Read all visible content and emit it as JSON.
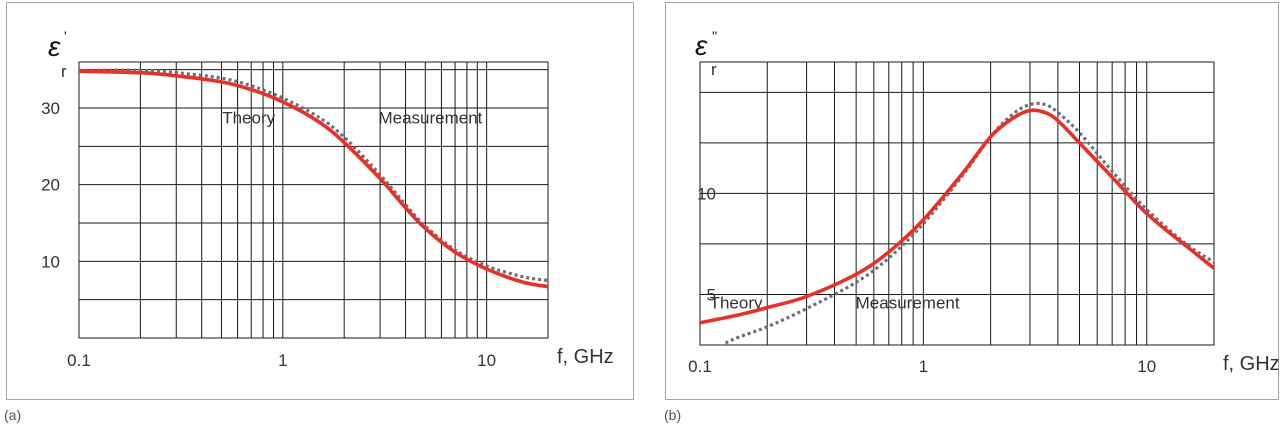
{
  "colors": {
    "theory": "#e8302a",
    "measurement": "#6e6e78",
    "grid": "#1a1a1a",
    "frame": "#a8a8a8",
    "text": "#333333"
  },
  "chart_data": [
    {
      "type": "line",
      "panel_label": "(a)",
      "ylabel_symbol": "ε",
      "ylabel_sup": "'",
      "ylabel_sub": "r",
      "xlabel": "f, GHz",
      "x_scale": "log",
      "xlim": [
        0.1,
        20
      ],
      "ylim": [
        0,
        36
      ],
      "x_ticks": [
        {
          "value": 0.1,
          "label": "0.1"
        },
        {
          "value": 1,
          "label": "1"
        },
        {
          "value": 10,
          "label": "10"
        }
      ],
      "y_ticks": [
        {
          "value": 10,
          "label": "10"
        },
        {
          "value": 20,
          "label": "20"
        },
        {
          "value": 30,
          "label": "30"
        }
      ],
      "y_grid": [
        5,
        10,
        15,
        20,
        25,
        30,
        35
      ],
      "grid": true,
      "annotations": [
        {
          "text": "Theory",
          "x": 0.68,
          "y": 28.0
        },
        {
          "text": "Measurement",
          "x": 5.3,
          "y": 28.0
        }
      ],
      "series": [
        {
          "name": "Theory",
          "style": "solid",
          "x": [
            0.1,
            0.2,
            0.3,
            0.5,
            0.7,
            1.0,
            1.5,
            2.0,
            3.0,
            4.0,
            5.0,
            7.0,
            10.0,
            15.0,
            20.0
          ],
          "y": [
            34.8,
            34.6,
            34.2,
            33.4,
            32.4,
            30.8,
            28.2,
            25.5,
            20.8,
            17.0,
            14.3,
            11.2,
            9.0,
            7.3,
            6.7
          ]
        },
        {
          "name": "Measurement",
          "style": "dotted",
          "x": [
            0.1,
            0.2,
            0.3,
            0.5,
            0.7,
            1.0,
            1.5,
            2.0,
            3.0,
            4.0,
            5.0,
            7.0,
            10.0,
            15.0,
            20.0
          ],
          "y": [
            34.9,
            34.9,
            34.6,
            33.9,
            32.9,
            31.3,
            28.8,
            26.2,
            21.3,
            17.4,
            14.6,
            11.5,
            9.4,
            8.0,
            7.5
          ]
        }
      ]
    },
    {
      "type": "line",
      "panel_label": "(b)",
      "ylabel_symbol": "ε",
      "ylabel_sup": "''",
      "ylabel_sub": "r",
      "xlabel": "f, GHz",
      "x_scale": "log",
      "xlim": [
        0.1,
        20
      ],
      "ylim": [
        2.5,
        16.5
      ],
      "x_ticks": [
        {
          "value": 0.1,
          "label": "0.1"
        },
        {
          "value": 1,
          "label": "1"
        },
        {
          "value": 10,
          "label": "10"
        }
      ],
      "y_ticks": [
        {
          "value": 5,
          "label": "5"
        },
        {
          "value": 10,
          "label": "10"
        }
      ],
      "y_grid": [
        5,
        7.5,
        10,
        12.5,
        15
      ],
      "grid": true,
      "annotations": [
        {
          "text": "Theory",
          "x": 0.145,
          "y": 4.3
        },
        {
          "text": "Measurement",
          "x": 0.85,
          "y": 4.3
        }
      ],
      "series": [
        {
          "name": "Theory",
          "style": "solid",
          "x": [
            0.1,
            0.15,
            0.2,
            0.3,
            0.5,
            0.7,
            1.0,
            1.5,
            2.0,
            2.5,
            3.0,
            3.5,
            4.0,
            5.0,
            7.0,
            10.0,
            15.0,
            20.0
          ],
          "y": [
            3.6,
            4.0,
            4.35,
            4.9,
            6.0,
            7.1,
            8.7,
            11.0,
            12.8,
            13.7,
            14.1,
            14.0,
            13.6,
            12.5,
            10.8,
            9.0,
            7.4,
            6.3
          ]
        },
        {
          "name": "Measurement",
          "style": "dotted",
          "x": [
            0.13,
            0.15,
            0.2,
            0.3,
            0.5,
            0.7,
            1.0,
            1.5,
            2.0,
            2.5,
            3.0,
            3.5,
            4.0,
            5.0,
            7.0,
            10.0,
            15.0,
            20.0
          ],
          "y": [
            2.6,
            2.9,
            3.4,
            4.3,
            5.6,
            6.8,
            8.5,
            10.9,
            12.8,
            13.9,
            14.4,
            14.4,
            14.0,
            13.0,
            11.1,
            9.2,
            7.5,
            6.6
          ]
        }
      ]
    }
  ]
}
